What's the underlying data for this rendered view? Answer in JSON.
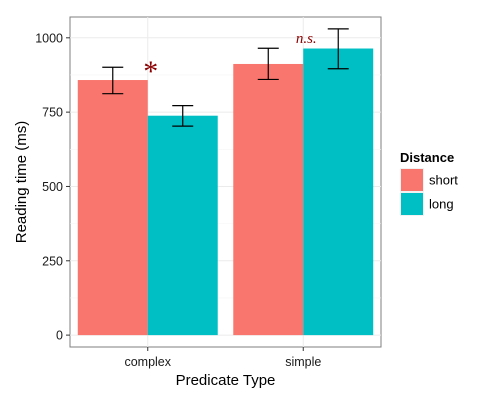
{
  "chart_data": {
    "type": "bar",
    "xlabel": "Predicate Type",
    "ylabel": "Reading time (ms)",
    "ylim": [
      -40,
      1070
    ],
    "yticks": [
      0,
      250,
      500,
      750,
      1000
    ],
    "grid": true,
    "categories": [
      "complex",
      "simple"
    ],
    "legend": {
      "title": "Distance",
      "position": "right"
    },
    "series": [
      {
        "name": "short",
        "color": "#F8766D",
        "values": [
          858,
          912
        ],
        "error_low": [
          812,
          860
        ],
        "error_high": [
          901,
          965
        ]
      },
      {
        "name": "long",
        "color": "#00BFC4",
        "values": [
          738,
          964
        ],
        "error_low": [
          703,
          896
        ],
        "error_high": [
          772,
          1030
        ]
      }
    ],
    "annotations": [
      {
        "category": "complex",
        "text": "*"
      },
      {
        "category": "simple",
        "text": "n.s."
      }
    ]
  }
}
